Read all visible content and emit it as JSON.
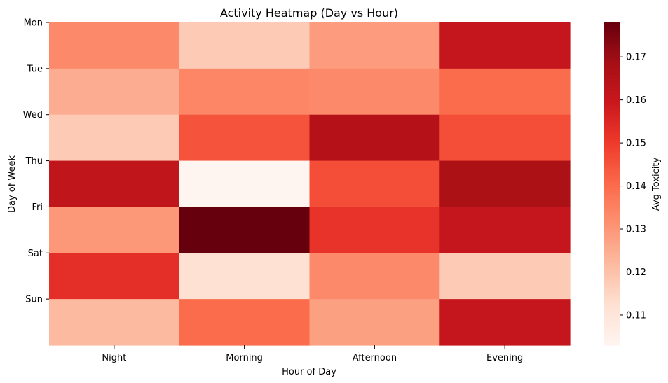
{
  "chart_data": {
    "type": "heatmap",
    "title": "Activity Heatmap (Day vs Hour)",
    "xlabel": "Hour of Day",
    "ylabel": "Day of Week",
    "x_categories": [
      "Night",
      "Morning",
      "Afternoon",
      "Evening"
    ],
    "y_categories": [
      "Mon",
      "Tue",
      "Wed",
      "Thu",
      "Fri",
      "Sat",
      "Sun"
    ],
    "values": [
      [
        0.133,
        0.118,
        0.129,
        0.161
      ],
      [
        0.125,
        0.134,
        0.133,
        0.14
      ],
      [
        0.118,
        0.145,
        0.165,
        0.146
      ],
      [
        0.162,
        0.103,
        0.146,
        0.167
      ],
      [
        0.13,
        0.178,
        0.152,
        0.161
      ],
      [
        0.153,
        0.112,
        0.133,
        0.118
      ],
      [
        0.122,
        0.14,
        0.128,
        0.161
      ]
    ],
    "colorbar": {
      "label": "Avg Toxicity",
      "range": [
        0.103,
        0.178
      ],
      "ticks": [
        0.11,
        0.12,
        0.13,
        0.14,
        0.15,
        0.16,
        0.17
      ],
      "colormap": "Reds"
    },
    "grid": false
  }
}
